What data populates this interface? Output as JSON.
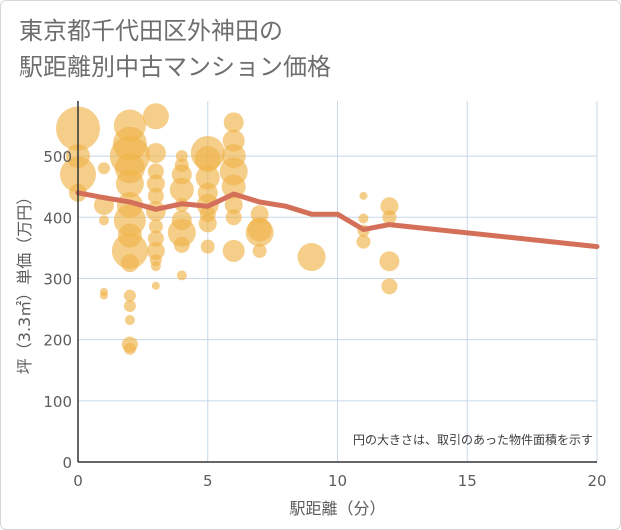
{
  "title_line1": "東京都千代田区外神田の",
  "title_line2": "駅距離別中古マンション価格",
  "colors": {
    "bubble": "#f0b34a",
    "line": "#d4705a",
    "grid": "#c8d8e8",
    "axis": "#333333"
  },
  "chart_data": {
    "type": "scatter",
    "title": "東京都千代田区外神田の駅距離別中古マンション価格",
    "xlabel": "駅距離（分）",
    "ylabel": "坪（3.3㎡）単価（万円）",
    "xlim": [
      0,
      20
    ],
    "ylim": [
      0,
      590
    ],
    "xticks": [
      0,
      5,
      10,
      15,
      20
    ],
    "yticks": [
      0,
      100,
      200,
      300,
      400,
      500
    ],
    "grid": true,
    "note": "円の大きさは、取引のあった物件面積を示す",
    "bubbles": [
      {
        "x": 0,
        "y": 545,
        "s": 22
      },
      {
        "x": 0,
        "y": 470,
        "s": 18
      },
      {
        "x": 0,
        "y": 440,
        "s": 9
      },
      {
        "x": 0,
        "y": 500,
        "s": 12
      },
      {
        "x": 1,
        "y": 480,
        "s": 6
      },
      {
        "x": 1,
        "y": 420,
        "s": 10
      },
      {
        "x": 1,
        "y": 395,
        "s": 5
      },
      {
        "x": 1,
        "y": 278,
        "s": 4
      },
      {
        "x": 1,
        "y": 272,
        "s": 4
      },
      {
        "x": 2,
        "y": 550,
        "s": 16
      },
      {
        "x": 2,
        "y": 520,
        "s": 17
      },
      {
        "x": 2,
        "y": 500,
        "s": 20
      },
      {
        "x": 2,
        "y": 480,
        "s": 15
      },
      {
        "x": 2,
        "y": 455,
        "s": 14
      },
      {
        "x": 2,
        "y": 420,
        "s": 13
      },
      {
        "x": 2,
        "y": 395,
        "s": 16
      },
      {
        "x": 2,
        "y": 370,
        "s": 12
      },
      {
        "x": 2,
        "y": 345,
        "s": 18
      },
      {
        "x": 2,
        "y": 325,
        "s": 9
      },
      {
        "x": 2,
        "y": 272,
        "s": 6
      },
      {
        "x": 2,
        "y": 255,
        "s": 6
      },
      {
        "x": 2,
        "y": 232,
        "s": 5
      },
      {
        "x": 2,
        "y": 192,
        "s": 8
      },
      {
        "x": 2,
        "y": 185,
        "s": 6
      },
      {
        "x": 3,
        "y": 565,
        "s": 13
      },
      {
        "x": 3,
        "y": 505,
        "s": 10
      },
      {
        "x": 3,
        "y": 475,
        "s": 8
      },
      {
        "x": 3,
        "y": 455,
        "s": 9
      },
      {
        "x": 3,
        "y": 435,
        "s": 8
      },
      {
        "x": 3,
        "y": 410,
        "s": 10
      },
      {
        "x": 3,
        "y": 385,
        "s": 7
      },
      {
        "x": 3,
        "y": 365,
        "s": 8
      },
      {
        "x": 3,
        "y": 345,
        "s": 9
      },
      {
        "x": 3,
        "y": 330,
        "s": 6
      },
      {
        "x": 3,
        "y": 320,
        "s": 5
      },
      {
        "x": 3,
        "y": 288,
        "s": 4
      },
      {
        "x": 4,
        "y": 500,
        "s": 6
      },
      {
        "x": 4,
        "y": 485,
        "s": 7
      },
      {
        "x": 4,
        "y": 470,
        "s": 10
      },
      {
        "x": 4,
        "y": 445,
        "s": 12
      },
      {
        "x": 4,
        "y": 420,
        "s": 7
      },
      {
        "x": 4,
        "y": 395,
        "s": 10
      },
      {
        "x": 4,
        "y": 375,
        "s": 14
      },
      {
        "x": 4,
        "y": 355,
        "s": 8
      },
      {
        "x": 4,
        "y": 305,
        "s": 5
      },
      {
        "x": 5,
        "y": 505,
        "s": 17
      },
      {
        "x": 5,
        "y": 495,
        "s": 13
      },
      {
        "x": 5,
        "y": 465,
        "s": 12
      },
      {
        "x": 5,
        "y": 440,
        "s": 10
      },
      {
        "x": 5,
        "y": 420,
        "s": 11
      },
      {
        "x": 5,
        "y": 405,
        "s": 8
      },
      {
        "x": 5,
        "y": 390,
        "s": 9
      },
      {
        "x": 5,
        "y": 352,
        "s": 7
      },
      {
        "x": 6,
        "y": 555,
        "s": 10
      },
      {
        "x": 6,
        "y": 525,
        "s": 11
      },
      {
        "x": 6,
        "y": 500,
        "s": 12
      },
      {
        "x": 6,
        "y": 475,
        "s": 14
      },
      {
        "x": 6,
        "y": 450,
        "s": 12
      },
      {
        "x": 6,
        "y": 420,
        "s": 9
      },
      {
        "x": 6,
        "y": 400,
        "s": 8
      },
      {
        "x": 6,
        "y": 345,
        "s": 11
      },
      {
        "x": 7,
        "y": 405,
        "s": 9
      },
      {
        "x": 7,
        "y": 380,
        "s": 12
      },
      {
        "x": 7,
        "y": 375,
        "s": 14
      },
      {
        "x": 7,
        "y": 345,
        "s": 7
      },
      {
        "x": 9,
        "y": 335,
        "s": 14
      },
      {
        "x": 11,
        "y": 435,
        "s": 4
      },
      {
        "x": 11,
        "y": 398,
        "s": 5
      },
      {
        "x": 11,
        "y": 378,
        "s": 6
      },
      {
        "x": 11,
        "y": 360,
        "s": 7
      },
      {
        "x": 12,
        "y": 418,
        "s": 9
      },
      {
        "x": 12,
        "y": 400,
        "s": 7
      },
      {
        "x": 12,
        "y": 328,
        "s": 10
      },
      {
        "x": 12,
        "y": 287,
        "s": 8
      }
    ],
    "series": [
      {
        "x": [
          0,
          1,
          2,
          3,
          4,
          5,
          6,
          7,
          8,
          9,
          10,
          11,
          12,
          20
        ],
        "values": [
          440,
          432,
          425,
          413,
          422,
          418,
          438,
          425,
          418,
          405,
          405,
          380,
          388,
          352
        ]
      }
    ]
  }
}
